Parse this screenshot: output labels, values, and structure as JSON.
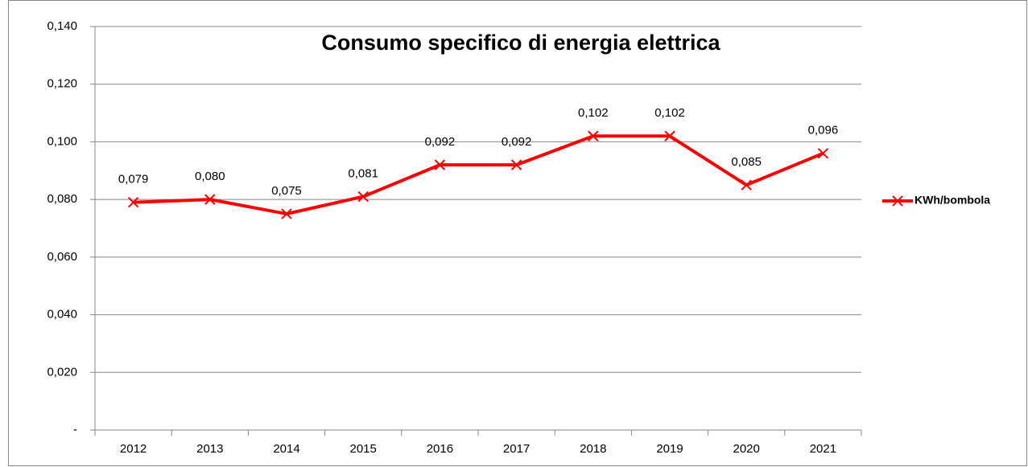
{
  "chart_data": {
    "type": "line",
    "title": "Consumo specifico di energia elettrica",
    "categories": [
      "2012",
      "2013",
      "2014",
      "2015",
      "2016",
      "2017",
      "2018",
      "2019",
      "2020",
      "2021"
    ],
    "series": [
      {
        "name": "KWh/bombola",
        "color": "#ff0000",
        "values": [
          0.079,
          0.08,
          0.075,
          0.081,
          0.092,
          0.092,
          0.102,
          0.102,
          0.085,
          0.096
        ],
        "value_labels": [
          "0,079",
          "0,080",
          "0,075",
          "0,081",
          "0,092",
          "0,092",
          "0,102",
          "0,102",
          "0,085",
          "0,096"
        ]
      }
    ],
    "ylim": [
      0,
      0.14
    ],
    "yticks": [
      {
        "value": 0,
        "label": "-"
      },
      {
        "value": 0.02,
        "label": "0,020"
      },
      {
        "value": 0.04,
        "label": "0,040"
      },
      {
        "value": 0.06,
        "label": "0,060"
      },
      {
        "value": 0.08,
        "label": "0,080"
      },
      {
        "value": 0.1,
        "label": "0,100"
      },
      {
        "value": 0.12,
        "label": "0,120"
      },
      {
        "value": 0.14,
        "label": "0,140"
      }
    ],
    "grid": true,
    "legend": "right"
  }
}
